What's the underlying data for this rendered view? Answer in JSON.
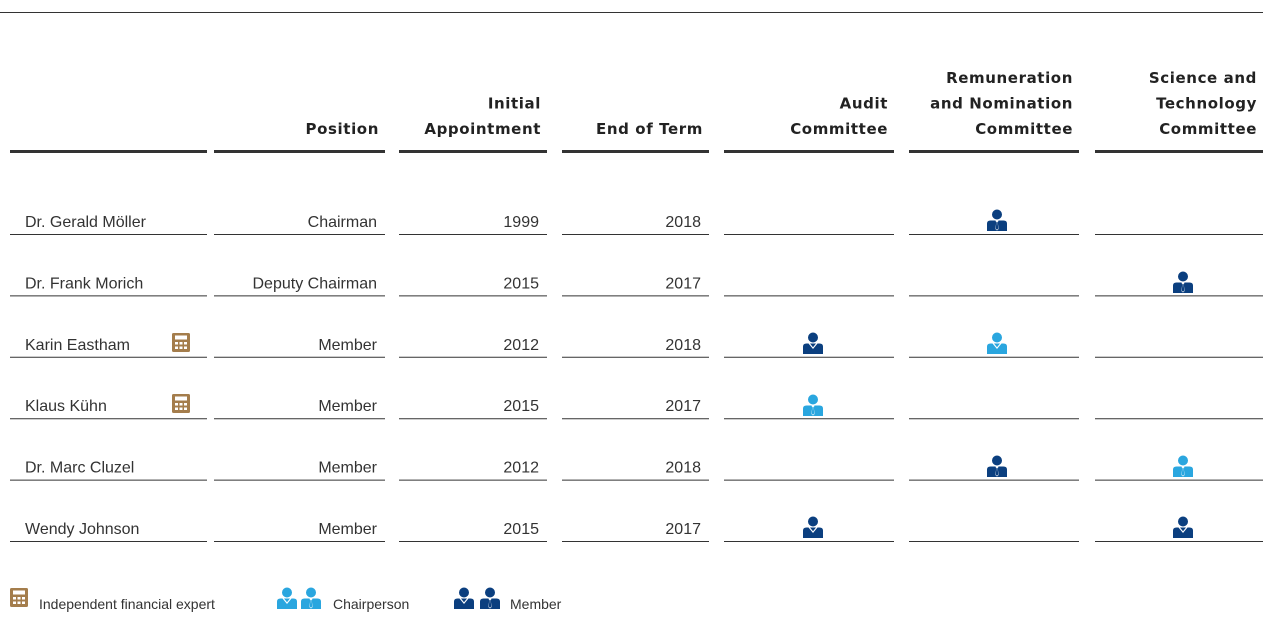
{
  "table": {
    "header": [
      [],
      [
        "Position"
      ],
      [
        "Initial",
        "Appointment"
      ],
      [
        "End of Term"
      ],
      [
        "Audit",
        "Committee"
      ],
      [
        "Remuneration",
        "and Nomination",
        "Committee"
      ],
      [
        "Science and",
        "Technology",
        "Committee"
      ]
    ],
    "rows": [
      [
        "Dr. Gerald Möller",
        "Chairman",
        "1999",
        "2018"
      ],
      [
        "Dr. Frank Morich",
        "Deputy Chairman",
        "2015",
        "2017"
      ],
      [
        "Karin Eastham",
        "Member",
        "2012",
        "2018"
      ],
      [
        "Klaus Kühn",
        "Member",
        "2015",
        "2017"
      ],
      [
        "Dr. Marc Cluzel",
        "Member",
        "2012",
        "2018"
      ],
      [
        "Wendy Johnson",
        "Member",
        "2015",
        "2017"
      ]
    ]
  },
  "legend": {
    "expert": "Independent financial expert",
    "chair": "Chairperson",
    "member": "Member"
  }
}
